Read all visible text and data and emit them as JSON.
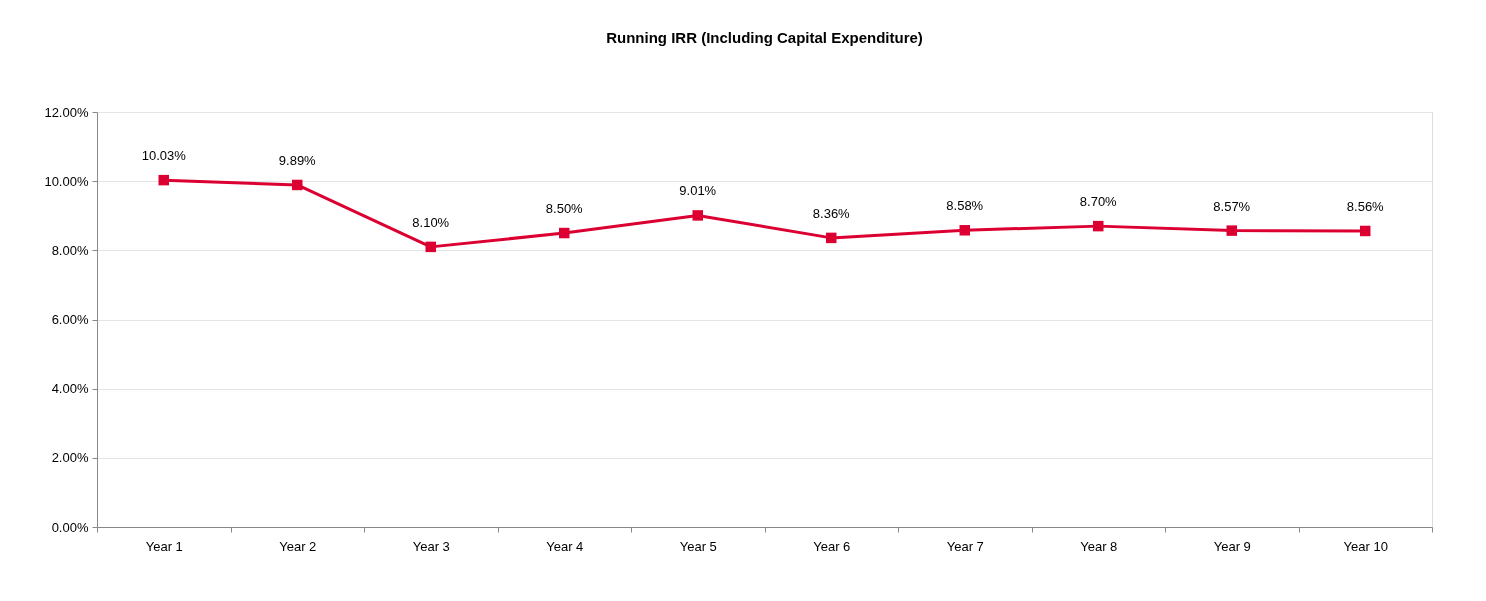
{
  "chart_data": {
    "type": "line",
    "title": "Running IRR (Including Capital Expenditure)",
    "categories": [
      "Year 1",
      "Year 2",
      "Year 3",
      "Year 4",
      "Year 5",
      "Year 6",
      "Year 7",
      "Year 8",
      "Year 9",
      "Year 10"
    ],
    "series": [
      {
        "color": "#dc0032",
        "values": [
          10.03,
          9.89,
          8.1,
          8.5,
          9.01,
          8.36,
          8.58,
          8.7,
          8.57,
          8.56
        ],
        "value_labels": [
          "10.03%",
          "9.89%",
          "8.10%",
          "8.50%",
          "9.01%",
          "8.36%",
          "8.58%",
          "8.70%",
          "8.57%",
          "8.56%"
        ]
      }
    ],
    "ylim": [
      0,
      12
    ],
    "yticks": [
      {
        "value": 0,
        "label": "0.00%"
      },
      {
        "value": 2,
        "label": "2.00%"
      },
      {
        "value": 4,
        "label": "4.00%"
      },
      {
        "value": 6,
        "label": "6.00%"
      },
      {
        "value": 8,
        "label": "8.00%"
      },
      {
        "value": 10,
        "label": "10.00%"
      },
      {
        "value": 12,
        "label": "12.00%"
      }
    ],
    "grid": "y",
    "marker": "square",
    "line_style": "solid"
  }
}
